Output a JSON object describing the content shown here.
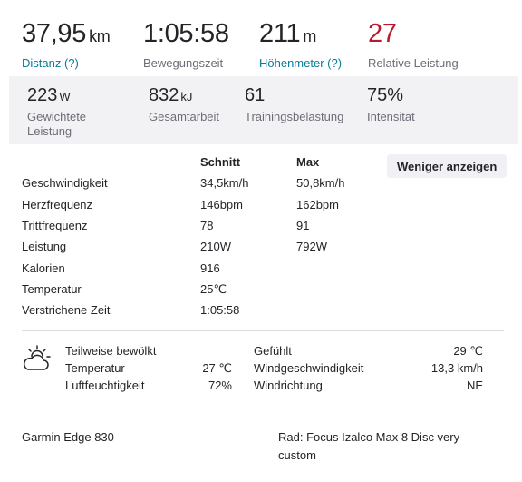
{
  "primary_stats": [
    {
      "value": "37,95",
      "unit": "km",
      "label": "Distanz (?)"
    },
    {
      "value": "1:05:58",
      "unit": "",
      "label": "Bewegungszeit"
    },
    {
      "value": "211",
      "unit": "m",
      "label": "Höhenmeter (?)"
    },
    {
      "value": "27",
      "unit": "",
      "label": "Relative Leistung"
    }
  ],
  "secondary_stats": [
    {
      "value": "223",
      "unit": "W",
      "label": "Gewichtete Leistung"
    },
    {
      "value": "832",
      "unit": "kJ",
      "label": "Gesamtarbeit"
    },
    {
      "value": "61",
      "unit": "",
      "label": "Trainingsbelastung"
    },
    {
      "value": "75%",
      "unit": "",
      "label": "Intensität"
    }
  ],
  "details": {
    "col_avg": "Schnitt",
    "col_max": "Max",
    "toggle_label": "Weniger anzeigen",
    "rows": [
      {
        "label": "Geschwindigkeit",
        "avg": "34,5km/h",
        "max": "50,8km/h"
      },
      {
        "label": "Herzfrequenz",
        "avg": "146bpm",
        "max": "162bpm"
      },
      {
        "label": "Trittfrequenz",
        "avg": "78",
        "max": "91"
      },
      {
        "label": "Leistung",
        "avg": "210W",
        "max": "792W"
      },
      {
        "label": "Kalorien",
        "avg": "916",
        "max": ""
      },
      {
        "label": "Temperatur",
        "avg": "25℃",
        "max": ""
      },
      {
        "label": "Verstrichene Zeit",
        "avg": "1:05:58",
        "max": ""
      }
    ]
  },
  "weather": {
    "icon": "partly-cloudy-icon",
    "condition": "Teilweise bewölkt",
    "left": [
      {
        "label": "Temperatur",
        "value": "27 ℃"
      },
      {
        "label": "Luftfeuchtigkeit",
        "value": "72%"
      }
    ],
    "right": [
      {
        "label": "Gefühlt",
        "value": "29 ℃"
      },
      {
        "label": "Windgeschwindigkeit",
        "value": "13,3 km/h"
      },
      {
        "label": "Windrichtung",
        "value": "NE"
      }
    ]
  },
  "devices": {
    "device": "Garmin Edge 830",
    "bike": "Rad: Focus Izalco Max 8 Disc very custom"
  },
  "colors": {
    "link": "#0a7b99",
    "relative_effort": "#b8192d",
    "secondary_bg": "#f2f2f5"
  }
}
